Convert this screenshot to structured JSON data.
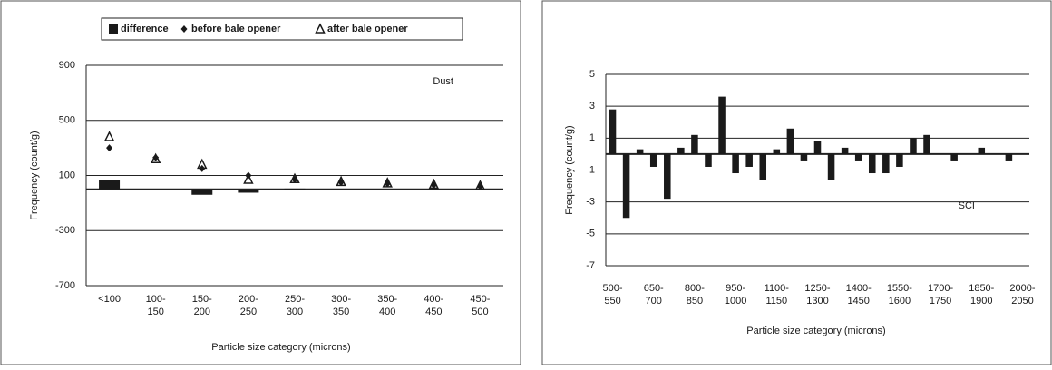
{
  "chart_data": [
    {
      "type": "bar-scatter",
      "annotation": "Dust",
      "x_label": "Particle size category (microns)",
      "y_label": "Frequency (count/g)",
      "categories": [
        "<100",
        "100-150",
        "150-200",
        "200-250",
        "250-300",
        "300-350",
        "350-400",
        "400-450",
        "450-500"
      ],
      "series": [
        {
          "name": "difference",
          "kind": "bar",
          "color": "#1a1a1a",
          "values": [
            70,
            0,
            -40,
            -25,
            5,
            0,
            0,
            0,
            0
          ]
        },
        {
          "name": "before bale opener",
          "kind": "marker",
          "marker": "diamond",
          "color": "#1a1a1a",
          "values": [
            300,
            230,
            150,
            100,
            70,
            50,
            40,
            30,
            20
          ]
        },
        {
          "name": "after bale opener",
          "kind": "marker",
          "marker": "triangle",
          "color": "#1a1a1a",
          "values": [
            380,
            220,
            180,
            70,
            75,
            55,
            45,
            35,
            25
          ]
        }
      ],
      "ylim": [
        -700,
        900
      ],
      "yticks": [
        -700,
        -300,
        100,
        500,
        900
      ],
      "grid": true
    },
    {
      "type": "bar",
      "annotation": "SCI",
      "x_label": "Particle size category (microns)",
      "y_label": "Frequency (count/g)",
      "categories": [
        "500-550",
        null,
        null,
        "650-700",
        null,
        null,
        "800-850",
        null,
        null,
        "950-1000",
        null,
        null,
        "1100-1150",
        null,
        null,
        "1250-1300",
        null,
        null,
        "1400-1450",
        null,
        null,
        "1550-1600",
        null,
        null,
        "1700-1750",
        null,
        null,
        "1850-1900",
        null,
        null,
        "2000-2050"
      ],
      "series": [
        {
          "name": "SCI",
          "kind": "bar",
          "color": "#1a1a1a",
          "values": [
            2.8,
            -4,
            0.3,
            -0.8,
            -2.8,
            0.4,
            1.2,
            -0.8,
            3.6,
            -1.2,
            -0.8,
            -1.6,
            0.3,
            1.6,
            -0.4,
            0.8,
            -1.6,
            0.4,
            -0.4,
            -1.2,
            -1.2,
            -0.8,
            1.0,
            1.2,
            0,
            -0.4,
            0,
            0.4,
            0,
            -0.4,
            0
          ]
        }
      ],
      "ylim": [
        -7,
        5
      ],
      "yticks": [
        -7,
        -5,
        -3,
        -1,
        1,
        3,
        5
      ],
      "grid": true
    }
  ]
}
